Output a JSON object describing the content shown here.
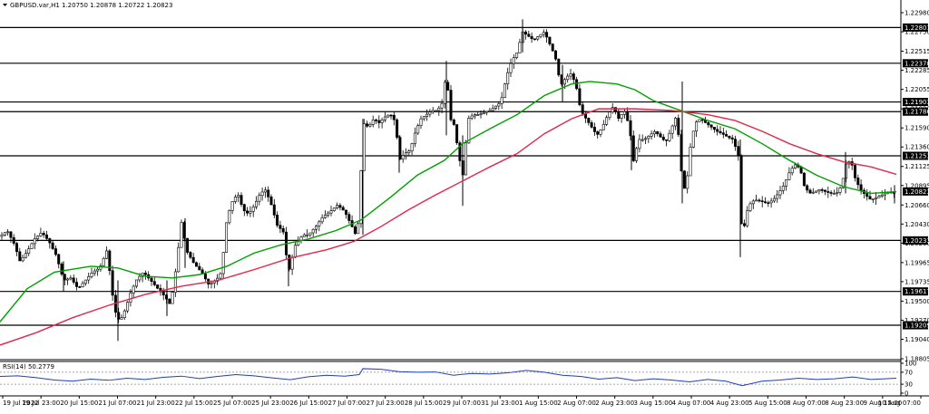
{
  "header": {
    "symbol": "GBPUSD.var,H1",
    "ohlc": "1.20750 1.20878 1.20722 1.20823"
  },
  "colors": {
    "bull_candle": "#ffffff",
    "bear_candle": "#000000",
    "candle_outline": "#000000",
    "ma_fast": "#00a000",
    "ma_slow": "#e0284a",
    "level_line": "#000000",
    "rsi_line": "#1e3cc8",
    "price_tag_bg": "#000000",
    "price_tag_text": "#ffffff"
  },
  "chart_data": [
    {
      "type": "candlestick",
      "title": "GBPUSD.var,H1",
      "y_ticks": [
        "1.22980",
        "1.22750",
        "1.22515",
        "1.22285",
        "1.22055",
        "1.21820",
        "1.21590",
        "1.21360",
        "1.21125",
        "1.20895",
        "1.20660",
        "1.20430",
        "1.20200",
        "1.19965",
        "1.19735",
        "1.19500",
        "1.19270",
        "1.19040",
        "1.18805"
      ],
      "ylim": [
        1.18805,
        1.2298
      ],
      "levels": [
        1.22801,
        1.2237,
        1.21903,
        1.21786,
        1.21253,
        1.20233,
        1.19617,
        1.19209
      ],
      "level_labels": [
        "1.22801",
        "1.22370",
        "1.21903",
        "1.21786",
        "1.21253",
        "1.20233",
        "1.19617",
        "1.19209"
      ],
      "current_price": 1.20823,
      "current_price_label": "1.20823",
      "x_labels": [
        "19 Jul 2022",
        "19 Jul 23:00",
        "20 Jul 15:00",
        "21 Jul 07:00",
        "21 Jul 23:00",
        "22 Jul 15:00",
        "25 Jul 07:00",
        "25 Jul 23:00",
        "26 Jul 15:00",
        "27 Jul 07:00",
        "27 Jul 23:00",
        "28 Jul 15:00",
        "29 Jul 07:00",
        "31 Jul 23:00",
        "1 Aug 15:00",
        "2 Aug 07:00",
        "2 Aug 23:00",
        "3 Aug 15:00",
        "4 Aug 07:00",
        "4 Aug 23:00",
        "5 Aug 15:00",
        "8 Aug 07:00",
        "8 Aug 23:00",
        "9 Aug 15:00",
        "10 Aug 07:00"
      ],
      "price_path": [
        [
          0,
          1.2028
        ],
        [
          8,
          1.2035
        ],
        [
          16,
          1.2018
        ],
        [
          22,
          1.1998
        ],
        [
          30,
          1.201
        ],
        [
          38,
          1.2025
        ],
        [
          46,
          1.2033
        ],
        [
          54,
          1.2022
        ],
        [
          62,
          1.2005
        ],
        [
          70,
          1.1975
        ],
        [
          78,
          1.1978
        ],
        [
          86,
          1.1965
        ],
        [
          94,
          1.1975
        ],
        [
          102,
          1.1985
        ],
        [
          110,
          1.199
        ],
        [
          118,
          1.2012
        ],
        [
          126,
          1.194
        ],
        [
          132,
          1.1925
        ],
        [
          138,
          1.194
        ],
        [
          144,
          1.196
        ],
        [
          150,
          1.1975
        ],
        [
          158,
          1.1985
        ],
        [
          166,
          1.1975
        ],
        [
          174,
          1.1965
        ],
        [
          182,
          1.1955
        ],
        [
          188,
          1.1945
        ],
        [
          194,
          1.199
        ],
        [
          200,
          1.2045
        ],
        [
          206,
          1.201
        ],
        [
          214,
          1.1995
        ],
        [
          222,
          1.1985
        ],
        [
          230,
          1.197
        ],
        [
          238,
          1.1975
        ],
        [
          244,
          1.1985
        ],
        [
          250,
          1.205
        ],
        [
          256,
          1.207
        ],
        [
          262,
          1.208
        ],
        [
          268,
          1.206
        ],
        [
          274,
          1.2055
        ],
        [
          280,
          1.2065
        ],
        [
          286,
          1.2078
        ],
        [
          292,
          1.2085
        ],
        [
          298,
          1.207
        ],
        [
          306,
          1.204
        ],
        [
          312,
          1.2035
        ],
        [
          318,
          1.1985
        ],
        [
          326,
          1.202
        ],
        [
          334,
          1.203
        ],
        [
          340,
          1.203
        ],
        [
          348,
          1.204
        ],
        [
          356,
          1.2052
        ],
        [
          364,
          1.2058
        ],
        [
          372,
          1.2066
        ],
        [
          380,
          1.2058
        ],
        [
          388,
          1.204
        ],
        [
          392,
          1.203
        ],
        [
          396,
          1.205
        ],
        [
          400,
          1.2165
        ],
        [
          406,
          1.216
        ],
        [
          412,
          1.217
        ],
        [
          418,
          1.2165
        ],
        [
          424,
          1.2172
        ],
        [
          430,
          1.2176
        ],
        [
          436,
          1.2166
        ],
        [
          440,
          1.212
        ],
        [
          446,
          1.2128
        ],
        [
          452,
          1.2132
        ],
        [
          458,
          1.2155
        ],
        [
          464,
          1.217
        ],
        [
          470,
          1.2175
        ],
        [
          476,
          1.218
        ],
        [
          482,
          1.218
        ],
        [
          488,
          1.219
        ],
        [
          492,
          1.223
        ],
        [
          496,
          1.217
        ],
        [
          500,
          1.2165
        ],
        [
          506,
          1.2125
        ],
        [
          510,
          1.21
        ],
        [
          516,
          1.217
        ],
        [
          522,
          1.2175
        ],
        [
          528,
          1.2175
        ],
        [
          534,
          1.2178
        ],
        [
          540,
          1.218
        ],
        [
          546,
          1.2185
        ],
        [
          552,
          1.219
        ],
        [
          558,
          1.222
        ],
        [
          564,
          1.224
        ],
        [
          570,
          1.225
        ],
        [
          576,
          1.2275
        ],
        [
          582,
          1.227
        ],
        [
          588,
          1.2265
        ],
        [
          594,
          1.227
        ],
        [
          600,
          1.2275
        ],
        [
          606,
          1.226
        ],
        [
          612,
          1.2245
        ],
        [
          618,
          1.221
        ],
        [
          624,
          1.222
        ],
        [
          630,
          1.2225
        ],
        [
          636,
          1.2205
        ],
        [
          640,
          1.218
        ],
        [
          646,
          1.217
        ],
        [
          652,
          1.216
        ],
        [
          658,
          1.215
        ],
        [
          664,
          1.216
        ],
        [
          670,
          1.2175
        ],
        [
          676,
          1.2185
        ],
        [
          682,
          1.217
        ],
        [
          688,
          1.218
        ],
        [
          694,
          1.216
        ],
        [
          698,
          1.2118
        ],
        [
          704,
          1.2145
        ],
        [
          710,
          1.2145
        ],
        [
          716,
          1.215
        ],
        [
          722,
          1.2155
        ],
        [
          728,
          1.2148
        ],
        [
          734,
          1.2142
        ],
        [
          740,
          1.2158
        ],
        [
          746,
          1.2175
        ],
        [
          752,
          1.2095
        ],
        [
          756,
          1.208
        ],
        [
          760,
          1.213
        ],
        [
          766,
          1.2165
        ],
        [
          772,
          1.217
        ],
        [
          778,
          1.2165
        ],
        [
          784,
          1.216
        ],
        [
          790,
          1.2155
        ],
        [
          796,
          1.2152
        ],
        [
          802,
          1.2148
        ],
        [
          808,
          1.2145
        ],
        [
          814,
          1.2125
        ],
        [
          818,
          1.202
        ],
        [
          822,
          1.2055
        ],
        [
          828,
          1.207
        ],
        [
          834,
          1.2072
        ],
        [
          840,
          1.207
        ],
        [
          846,
          1.2068
        ],
        [
          852,
          1.2072
        ],
        [
          858,
          1.208
        ],
        [
          864,
          1.209
        ],
        [
          870,
          1.2105
        ],
        [
          876,
          1.2115
        ],
        [
          882,
          1.211
        ],
        [
          886,
          1.209
        ],
        [
          892,
          1.208
        ],
        [
          898,
          1.2082
        ],
        [
          904,
          1.2085
        ],
        [
          910,
          1.2082
        ],
        [
          916,
          1.208
        ],
        [
          922,
          1.208
        ],
        [
          928,
          1.209
        ],
        [
          932,
          1.2115
        ],
        [
          938,
          1.212
        ],
        [
          942,
          1.21
        ],
        [
          948,
          1.2085
        ],
        [
          954,
          1.2078
        ],
        [
          960,
          1.2072
        ],
        [
          966,
          1.2075
        ],
        [
          972,
          1.2078
        ],
        [
          978,
          1.2082
        ],
        [
          984,
          1.208
        ],
        [
          988,
          1.2082
        ]
      ],
      "spikes": [
        [
          70,
          1.1998,
          1.1962
        ],
        [
          130,
          1.1975,
          1.1902
        ],
        [
          184,
          1.1975,
          1.1932
        ],
        [
          204,
          1.205,
          1.199
        ],
        [
          318,
          1.2005,
          1.1968
        ],
        [
          400,
          1.217,
          1.203
        ],
        [
          440,
          1.215,
          1.2105
        ],
        [
          492,
          1.224,
          1.215
        ],
        [
          510,
          1.215,
          1.2065
        ],
        [
          576,
          1.229,
          1.225
        ],
        [
          620,
          1.2235,
          1.219
        ],
        [
          696,
          1.216,
          1.2108
        ],
        [
          752,
          1.2215,
          1.2068
        ],
        [
          816,
          1.2145,
          1.2003
        ],
        [
          932,
          1.213,
          1.208
        ],
        [
          986,
          1.209,
          1.2068
        ]
      ],
      "series": [
        {
          "name": "",
          "color": "#00a000",
          "points": [
            [
              0,
              1.1925
            ],
            [
              30,
              1.1965
            ],
            [
              60,
              1.1985
            ],
            [
              100,
              1.1992
            ],
            [
              130,
              1.199
            ],
            [
              160,
              1.198
            ],
            [
              190,
              1.1978
            ],
            [
              220,
              1.1982
            ],
            [
              250,
              1.1992
            ],
            [
              280,
              1.2008
            ],
            [
              310,
              1.2018
            ],
            [
              340,
              1.2025
            ],
            [
              370,
              1.2035
            ],
            [
              398,
              1.2048
            ],
            [
              430,
              1.2075
            ],
            [
              460,
              1.2102
            ],
            [
              490,
              1.212
            ],
            [
              510,
              1.214
            ],
            [
              540,
              1.2158
            ],
            [
              570,
              1.2175
            ],
            [
              600,
              1.2198
            ],
            [
              630,
              1.2212
            ],
            [
              650,
              1.2215
            ],
            [
              680,
              1.2212
            ],
            [
              700,
              1.2205
            ],
            [
              720,
              1.2192
            ],
            [
              750,
              1.218
            ],
            [
              780,
              1.2168
            ],
            [
              810,
              1.2158
            ],
            [
              840,
              1.214
            ],
            [
              870,
              1.212
            ],
            [
              900,
              1.2102
            ],
            [
              930,
              1.2088
            ],
            [
              960,
              1.208
            ],
            [
              988,
              1.2082
            ]
          ]
        },
        {
          "name": "",
          "color": "#e0284a",
          "points": [
            [
              0,
              1.1897
            ],
            [
              40,
              1.1912
            ],
            [
              80,
              1.193
            ],
            [
              120,
              1.1945
            ],
            [
              160,
              1.1958
            ],
            [
              200,
              1.1968
            ],
            [
              240,
              1.1975
            ],
            [
              280,
              1.1988
            ],
            [
              320,
              1.2002
            ],
            [
              360,
              1.2012
            ],
            [
              390,
              1.2022
            ],
            [
              420,
              1.204
            ],
            [
              450,
              1.206
            ],
            [
              480,
              1.2078
            ],
            [
              510,
              1.2095
            ],
            [
              540,
              1.2112
            ],
            [
              570,
              1.2128
            ],
            [
              600,
              1.2152
            ],
            [
              630,
              1.217
            ],
            [
              660,
              1.2182
            ],
            [
              700,
              1.2182
            ],
            [
              740,
              1.218
            ],
            [
              780,
              1.2175
            ],
            [
              810,
              1.2168
            ],
            [
              840,
              1.2155
            ],
            [
              870,
              1.214
            ],
            [
              900,
              1.2128
            ],
            [
              930,
              1.2118
            ],
            [
              960,
              1.2112
            ],
            [
              988,
              1.2103
            ]
          ]
        }
      ]
    },
    {
      "type": "line",
      "title": "RSI(14) 50.2779",
      "y_ticks": [
        "100",
        "70",
        "30",
        "0"
      ],
      "ylim": [
        0,
        100
      ],
      "levels": [
        70,
        30
      ],
      "series": [
        {
          "name": "RSI(14)",
          "color": "#1e3cc8",
          "points": [
            [
              0,
              56
            ],
            [
              20,
              58
            ],
            [
              40,
              52
            ],
            [
              60,
              44
            ],
            [
              80,
              40
            ],
            [
              100,
              47
            ],
            [
              120,
              43
            ],
            [
              140,
              50
            ],
            [
              160,
              46
            ],
            [
              180,
              53
            ],
            [
              200,
              57
            ],
            [
              220,
              49
            ],
            [
              240,
              56
            ],
            [
              260,
              62
            ],
            [
              280,
              58
            ],
            [
              300,
              51
            ],
            [
              320,
              45
            ],
            [
              340,
              55
            ],
            [
              360,
              60
            ],
            [
              380,
              57
            ],
            [
              396,
              62
            ],
            [
              400,
              82
            ],
            [
              420,
              80
            ],
            [
              440,
              72
            ],
            [
              460,
              70
            ],
            [
              480,
              71
            ],
            [
              500,
              60
            ],
            [
              520,
              66
            ],
            [
              540,
              64
            ],
            [
              560,
              68
            ],
            [
              580,
              76
            ],
            [
              600,
              70
            ],
            [
              620,
              60
            ],
            [
              640,
              56
            ],
            [
              660,
              47
            ],
            [
              680,
              52
            ],
            [
              700,
              42
            ],
            [
              720,
              48
            ],
            [
              740,
              44
            ],
            [
              760,
              38
            ],
            [
              780,
              46
            ],
            [
              800,
              40
            ],
            [
              818,
              25
            ],
            [
              840,
              40
            ],
            [
              860,
              44
            ],
            [
              880,
              50
            ],
            [
              900,
              46
            ],
            [
              920,
              48
            ],
            [
              940,
              54
            ],
            [
              960,
              46
            ],
            [
              988,
              50
            ]
          ]
        }
      ]
    }
  ]
}
